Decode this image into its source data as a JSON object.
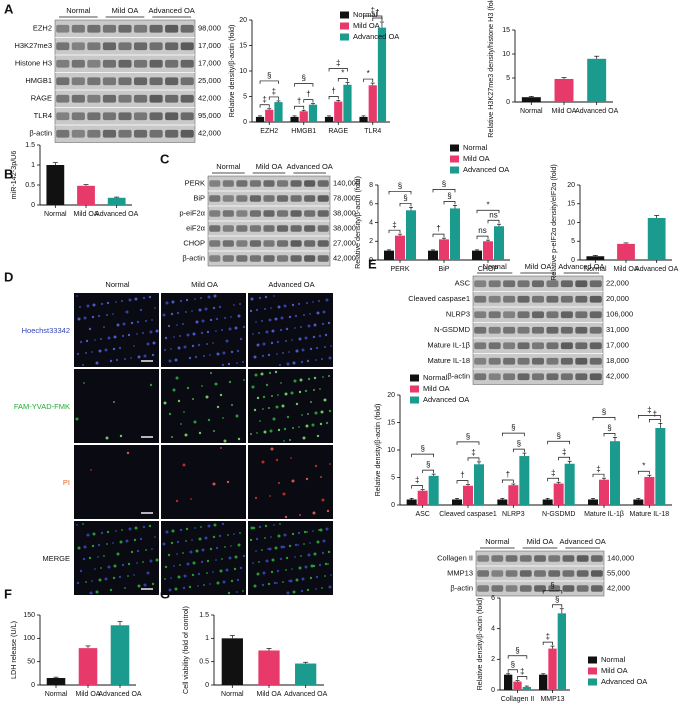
{
  "panel_letters": [
    "A",
    "B",
    "C",
    "D",
    "E",
    "F",
    "G"
  ],
  "colors": {
    "normal": "#111111",
    "mild": "#e8396b",
    "advanced": "#1b9a8e",
    "blot_bg": "#c9c9c9",
    "band": "#2a2a2a",
    "micro_bg": "#0a0a12"
  },
  "legend": [
    "Normal",
    "Mild OA",
    "Advanced OA"
  ],
  "sig": {
    "dagger": "†",
    "ddagger": "‡",
    "section": "§",
    "star": "*",
    "ns": "ns"
  },
  "panelA_blot": {
    "groups": [
      "Normal",
      "Mild OA",
      "Advanced OA"
    ],
    "proteins": [
      "EZH2",
      "H3K27me3",
      "Histone H3",
      "HMGB1",
      "RAGE",
      "TLR4",
      "β-actin"
    ],
    "mw": [
      "98,000",
      "17,000",
      "17,000",
      "25,000",
      "42,000",
      "95,000",
      "42,000"
    ]
  },
  "panelC_blot": {
    "groups": [
      "Normal",
      "Mild OA",
      "Advanced OA"
    ],
    "proteins": [
      "PERK",
      "BiP",
      "p-eiF2α",
      "eiF2α",
      "CHOP",
      "β-actin"
    ],
    "mw": [
      "140,000",
      "78,000",
      "38,000",
      "38,000",
      "27,000",
      "42,000"
    ]
  },
  "panelE_blot1": {
    "groups": [
      "Normal",
      "Mild OA",
      "Advanced OA"
    ],
    "proteins": [
      "ASC",
      "Cleaved caspase1",
      "NLRP3",
      "N-GSDMD",
      "Mature IL-1β",
      "Mature IL-18",
      "β-actin"
    ],
    "mw": [
      "22,000",
      "20,000",
      "106,000",
      "31,000",
      "17,000",
      "18,000",
      "42,000"
    ]
  },
  "panelE_blot2": {
    "groups": [
      "Normal",
      "Mild OA",
      "Advanced OA"
    ],
    "proteins": [
      "Collagen II",
      "MMP13",
      "β-actin"
    ],
    "mw": [
      "140,000",
      "55,000",
      "42,000"
    ]
  },
  "panelD": {
    "columns": [
      "Normal",
      "Mild OA",
      "Advanced OA"
    ],
    "rows": [
      "Hoechst33342",
      "FAM-YVAD-FMK",
      "PI",
      "MERGE"
    ],
    "row_colors": [
      "#3344bb",
      "#22aa33",
      "#e0642a",
      "#111111"
    ]
  },
  "chart_data": [
    {
      "id": "A1",
      "type": "bar",
      "categories": [
        "EZH2",
        "HMGB1",
        "RAGE",
        "TLR4"
      ],
      "series": [
        {
          "name": "Normal",
          "values": [
            1.0,
            1.0,
            1.0,
            1.0
          ]
        },
        {
          "name": "Mild OA",
          "values": [
            2.4,
            2.1,
            4.0,
            7.2
          ]
        },
        {
          "name": "Advanced OA",
          "values": [
            3.9,
            3.4,
            7.3,
            18.5
          ]
        }
      ],
      "ylabel": "Relative density/β-actin (fold)",
      "ylim": [
        0,
        20
      ],
      "yticks": [
        0,
        5,
        10,
        15,
        20
      ],
      "legend": [
        "Normal",
        "Mild OA",
        "Advanced OA"
      ]
    },
    {
      "id": "A2",
      "type": "bar",
      "categories": [
        "Normal",
        "Mild OA",
        "Advanced OA"
      ],
      "values": [
        1.0,
        4.8,
        9.0
      ],
      "ylabel": "Relative H3K27me3 density/histone H3 (fold)",
      "ylim": [
        0,
        15
      ],
      "yticks": [
        0,
        5,
        10,
        15
      ]
    },
    {
      "id": "B",
      "type": "bar",
      "categories": [
        "Normal",
        "Mild OA",
        "Advanced OA"
      ],
      "values": [
        1.0,
        0.48,
        0.18
      ],
      "ylabel": "miR-142-3p/U6",
      "ylim": [
        0,
        1.5
      ],
      "yticks": [
        0,
        0.5,
        1.0,
        1.5
      ]
    },
    {
      "id": "C1",
      "type": "bar",
      "categories": [
        "PERK",
        "BiP",
        "CHOP"
      ],
      "series": [
        {
          "name": "Normal",
          "values": [
            1.0,
            1.0,
            1.0
          ]
        },
        {
          "name": "Mild OA",
          "values": [
            2.6,
            2.2,
            2.0
          ]
        },
        {
          "name": "Advanced OA",
          "values": [
            5.3,
            5.5,
            3.6
          ]
        }
      ],
      "ylabel": "Relative density/β-actin (fold)",
      "ylim": [
        0,
        8
      ],
      "yticks": [
        0,
        2,
        4,
        6,
        8
      ],
      "legend": [
        "Normal",
        "Mild OA",
        "Advanced OA"
      ]
    },
    {
      "id": "C2",
      "type": "bar",
      "categories": [
        "Normal",
        "Mild OA",
        "Advanced OA"
      ],
      "values": [
        1.0,
        4.3,
        11.2
      ],
      "ylabel": "Relative p-eIF2α density/eIF2α (fold)",
      "ylim": [
        0,
        20
      ],
      "yticks": [
        0,
        5,
        10,
        15,
        20
      ]
    },
    {
      "id": "E1",
      "type": "bar",
      "categories": [
        "ASC",
        "Cleaved caspase1",
        "NLRP3",
        "N-GSDMD",
        "Mature IL-1β",
        "Mature IL-18"
      ],
      "series": [
        {
          "name": "Normal",
          "values": [
            1.0,
            1.0,
            1.0,
            1.0,
            1.0,
            1.0
          ]
        },
        {
          "name": "Mild OA",
          "values": [
            2.6,
            3.5,
            3.6,
            3.9,
            4.6,
            5.1
          ]
        },
        {
          "name": "Advanced OA",
          "values": [
            5.3,
            7.4,
            8.9,
            7.5,
            11.6,
            14.0
          ]
        }
      ],
      "ylabel": "Relative density/β-actin (fold)",
      "ylim": [
        0,
        20
      ],
      "yticks": [
        0,
        5,
        10,
        15,
        20
      ],
      "legend": [
        "Normal",
        "Mild OA",
        "Advanced OA"
      ]
    },
    {
      "id": "E2",
      "type": "bar",
      "categories": [
        "Collagen II",
        "MMP13"
      ],
      "series": [
        {
          "name": "Normal",
          "values": [
            1.0,
            1.0
          ]
        },
        {
          "name": "Mild OA",
          "values": [
            0.55,
            2.7
          ]
        },
        {
          "name": "Advanced OA",
          "values": [
            0.2,
            5.0
          ]
        }
      ],
      "ylabel": "Relative density/β-actin (fold)",
      "ylim": [
        0,
        6
      ],
      "yticks": [
        0,
        2,
        4,
        6
      ],
      "legend": [
        "Normal",
        "Mild OA",
        "Advanced OA"
      ]
    },
    {
      "id": "F",
      "type": "bar",
      "categories": [
        "Normal",
        "Mild OA",
        "Advanced OA"
      ],
      "values": [
        15,
        79,
        128
      ],
      "ylabel": "LDH release (U/L)",
      "ylim": [
        0,
        150
      ],
      "yticks": [
        0,
        50,
        100,
        150
      ]
    },
    {
      "id": "G",
      "type": "bar",
      "categories": [
        "Normal",
        "Mild OA",
        "Advanced OA"
      ],
      "values": [
        1.0,
        0.74,
        0.46
      ],
      "ylabel": "Cell viability (fold of control)",
      "ylim": [
        0,
        1.5
      ],
      "yticks": [
        0,
        0.5,
        1.0,
        1.5
      ]
    }
  ]
}
